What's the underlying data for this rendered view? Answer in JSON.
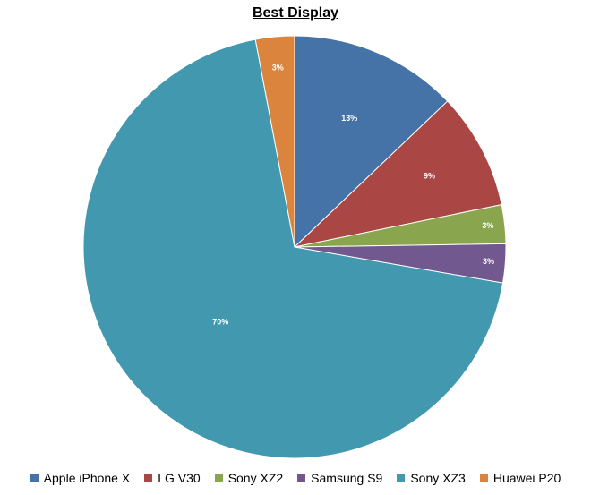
{
  "chart_data": {
    "type": "pie",
    "title": "Best Display",
    "series": [
      {
        "name": "Apple iPhone X",
        "value": 13,
        "label": "13%",
        "color": "#4572A7"
      },
      {
        "name": "LG V30",
        "value": 9,
        "label": "9%",
        "color": "#AA4643"
      },
      {
        "name": "Sony XZ2",
        "value": 3,
        "label": "3%",
        "color": "#89A54E"
      },
      {
        "name": "Samsung S9",
        "value": 3,
        "label": "3%",
        "color": "#71588F"
      },
      {
        "name": "Sony XZ3",
        "value": 70,
        "label": "70%",
        "color": "#4198AF"
      },
      {
        "name": "Huawei P20",
        "value": 3,
        "label": "3%",
        "color": "#DB843D"
      }
    ],
    "legend_position": "bottom"
  }
}
